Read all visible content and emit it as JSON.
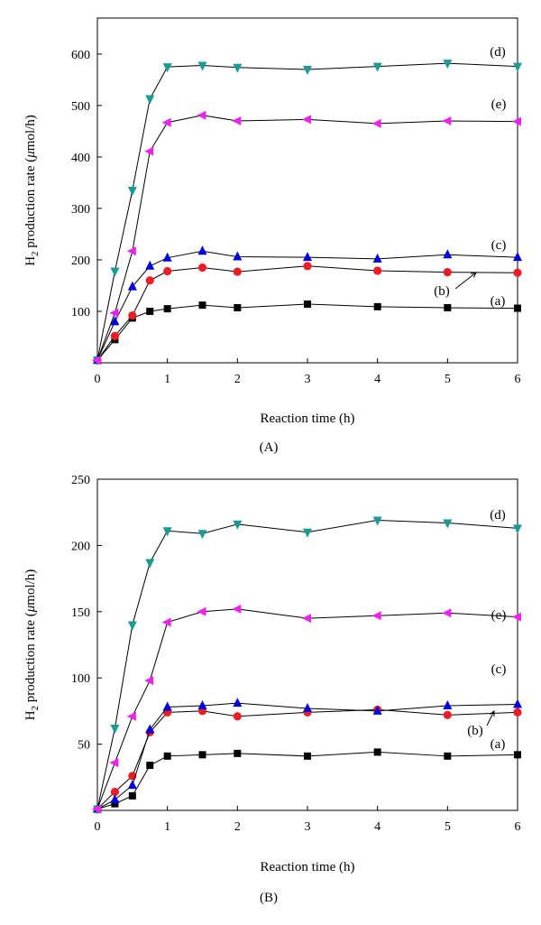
{
  "chart_data": [
    {
      "type": "line",
      "panel_label": "(A)",
      "xlabel": "Reaction time (h)",
      "ylabel_prefix": "H",
      "ylabel_sub": "2",
      "ylabel_suffix": " production rate (",
      "ylabel_mu": "μ",
      "ylabel_end": "mol/h)",
      "xlim": [
        0,
        6
      ],
      "ylim": [
        0,
        670
      ],
      "xticks": [
        0,
        1,
        2,
        3,
        4,
        5,
        6
      ],
      "yticks": [
        100,
        200,
        300,
        400,
        500,
        600
      ],
      "grid": false,
      "legend": "inline labels at right",
      "series": [
        {
          "name": "(a)",
          "color": "#000000",
          "marker": "square",
          "x": [
            0,
            0.25,
            0.5,
            0.75,
            1,
            1.5,
            2,
            3,
            4,
            5,
            6
          ],
          "y": [
            5,
            45,
            87,
            100,
            105,
            112,
            107,
            114,
            109,
            107,
            106
          ]
        },
        {
          "name": "(b)",
          "color": "#ee1c25",
          "marker": "circle",
          "x": [
            0,
            0.25,
            0.5,
            0.75,
            1,
            1.5,
            2,
            3,
            4,
            5,
            6
          ],
          "y": [
            5,
            52,
            92,
            160,
            178,
            185,
            177,
            188,
            179,
            176,
            175
          ]
        },
        {
          "name": "(c)",
          "color": "#0000dd",
          "marker": "triangle-up",
          "x": [
            0,
            0.25,
            0.5,
            0.75,
            1,
            1.5,
            2,
            3,
            4,
            5,
            6
          ],
          "y": [
            5,
            80,
            148,
            188,
            204,
            217,
            206,
            205,
            202,
            210,
            205
          ]
        },
        {
          "name": "(d)",
          "color": "#1a9a94",
          "marker": "triangle-down",
          "x": [
            0,
            0.25,
            0.5,
            0.75,
            1,
            1.5,
            2,
            3,
            4,
            5,
            6
          ],
          "y": [
            5,
            178,
            335,
            513,
            575,
            578,
            574,
            570,
            576,
            582,
            576
          ]
        },
        {
          "name": "(e)",
          "color": "#ee22ee",
          "marker": "triangle-left",
          "x": [
            0,
            0.25,
            0.5,
            0.75,
            1,
            1.5,
            2,
            3,
            4,
            5,
            6
          ],
          "y": [
            5,
            97,
            217,
            411,
            467,
            481,
            470,
            473,
            465,
            470,
            469
          ]
        }
      ]
    },
    {
      "type": "line",
      "panel_label": "(B)",
      "xlabel": "Reaction time (h)",
      "ylabel_prefix": "H",
      "ylabel_sub": "2",
      "ylabel_suffix": " production rate (",
      "ylabel_mu": "μ",
      "ylabel_end": "mol/h)",
      "xlim": [
        0,
        6
      ],
      "ylim": [
        0,
        250
      ],
      "xticks": [
        0,
        1,
        2,
        3,
        4,
        5,
        6
      ],
      "yticks": [
        50,
        100,
        150,
        200,
        250
      ],
      "grid": false,
      "legend": "inline labels at right",
      "series": [
        {
          "name": "(a)",
          "color": "#000000",
          "marker": "square",
          "x": [
            0,
            0.25,
            0.5,
            0.75,
            1,
            1.5,
            2,
            3,
            4,
            5,
            6
          ],
          "y": [
            1,
            5,
            11,
            34,
            41,
            42,
            43,
            41,
            44,
            41,
            42
          ]
        },
        {
          "name": "(b)",
          "color": "#ee1c25",
          "marker": "circle",
          "x": [
            0,
            0.25,
            0.5,
            0.75,
            1,
            1.5,
            2,
            3,
            4,
            5,
            6
          ],
          "y": [
            1,
            14,
            26,
            59,
            74,
            75,
            71,
            74,
            76,
            72,
            74
          ]
        },
        {
          "name": "(c)",
          "color": "#0000dd",
          "marker": "triangle-up",
          "x": [
            0,
            0.25,
            0.5,
            0.75,
            1,
            1.5,
            2,
            3,
            4,
            5,
            6
          ],
          "y": [
            1,
            8,
            19,
            61,
            78,
            79,
            81,
            77,
            75,
            79,
            80
          ]
        },
        {
          "name": "(d)",
          "color": "#1a9a94",
          "marker": "triangle-down",
          "x": [
            0,
            0.25,
            0.5,
            0.75,
            1,
            1.5,
            2,
            3,
            4,
            5,
            6
          ],
          "y": [
            1,
            62,
            140,
            187,
            211,
            209,
            216,
            210,
            219,
            217,
            213
          ]
        },
        {
          "name": "(e)",
          "color": "#ee22ee",
          "marker": "triangle-left",
          "x": [
            0,
            0.25,
            0.5,
            0.75,
            1,
            1.5,
            2,
            3,
            4,
            5,
            6
          ],
          "y": [
            1,
            36,
            71,
            98,
            142,
            150,
            152,
            145,
            147,
            149,
            146
          ]
        }
      ]
    }
  ]
}
